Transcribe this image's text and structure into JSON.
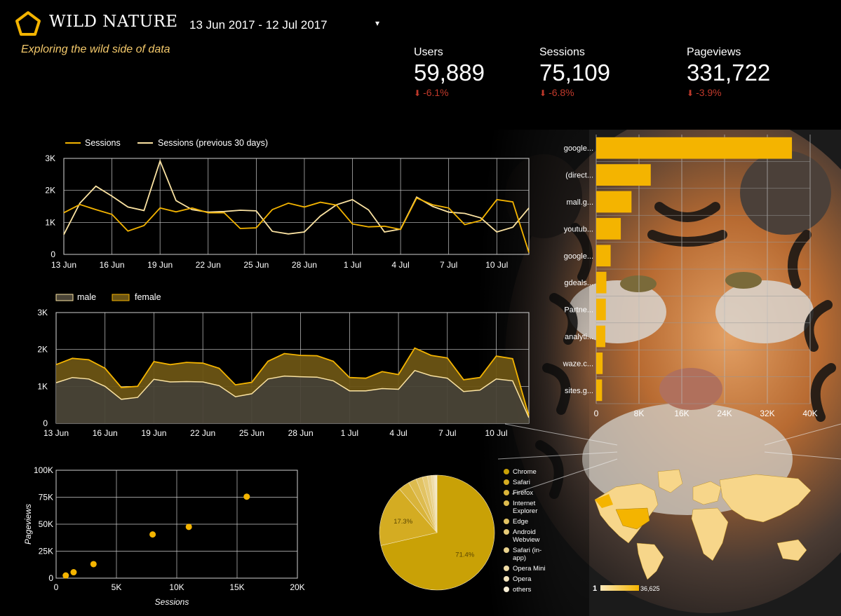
{
  "header": {
    "brand_name": "WILD NATURE",
    "tagline": "Exploring the wild side of data",
    "date_range": "13 Jun 2017 - 12 Jul 2017",
    "accent_color": "#f4b400"
  },
  "kpis": [
    {
      "label": "Users",
      "value": "59,889",
      "delta": "-6.1%"
    },
    {
      "label": "Sessions",
      "value": "75,109",
      "delta": "-6.8%"
    },
    {
      "label": "Pageviews",
      "value": "331,722",
      "delta": "-3.9%"
    }
  ],
  "chart_data": [
    {
      "type": "line",
      "legend": [
        "Sessions",
        "Sessions (previous 30 days)"
      ],
      "x_ticks": [
        "13 Jun",
        "16 Jun",
        "19 Jun",
        "22 Jun",
        "25 Jun",
        "28 Jun",
        "1 Jul",
        "4 Jul",
        "7 Jul",
        "10 Jul"
      ],
      "y_ticks": [
        "0",
        "1K",
        "2K",
        "3K"
      ],
      "ylim": [
        0,
        3000
      ],
      "series": [
        {
          "name": "Sessions",
          "color": "#f4b400",
          "values": [
            1300,
            1560,
            1400,
            1250,
            730,
            900,
            1450,
            1330,
            1450,
            1300,
            1300,
            810,
            830,
            1400,
            1600,
            1480,
            1630,
            1540,
            950,
            860,
            880,
            780,
            1760,
            1550,
            1450,
            930,
            1060,
            1710,
            1640,
            60
          ]
        },
        {
          "name": "Sessions (previous 30 days)",
          "color": "#fbe3a2",
          "values": [
            620,
            1600,
            2130,
            1820,
            1480,
            1370,
            2920,
            1680,
            1400,
            1320,
            1340,
            1380,
            1360,
            720,
            640,
            700,
            1200,
            1550,
            1710,
            1390,
            700,
            790,
            1790,
            1500,
            1320,
            1280,
            1140,
            700,
            850,
            1450
          ]
        }
      ]
    },
    {
      "type": "area",
      "stacked": true,
      "legend": [
        "male",
        "female"
      ],
      "x_ticks": [
        "13 Jun",
        "16 Jun",
        "19 Jun",
        "22 Jun",
        "25 Jun",
        "28 Jun",
        "1 Jul",
        "4 Jul",
        "7 Jul",
        "10 Jul"
      ],
      "y_ticks": [
        "0",
        "1K",
        "2K",
        "3K"
      ],
      "ylim": [
        0,
        3000
      ],
      "series": [
        {
          "name": "male",
          "color": "#fbe3a2",
          "values": [
            1100,
            1240,
            1200,
            1000,
            650,
            700,
            1190,
            1120,
            1130,
            1120,
            1020,
            720,
            800,
            1200,
            1280,
            1260,
            1250,
            1150,
            880,
            880,
            940,
            920,
            1430,
            1290,
            1220,
            860,
            900,
            1200,
            1150,
            150
          ]
        },
        {
          "name": "female",
          "color": "#f4b400",
          "values": [
            490,
            520,
            520,
            490,
            320,
            300,
            480,
            470,
            520,
            510,
            470,
            320,
            310,
            480,
            610,
            580,
            580,
            530,
            360,
            340,
            460,
            400,
            610,
            550,
            550,
            320,
            340,
            620,
            600,
            50
          ]
        }
      ]
    },
    {
      "type": "bar",
      "orientation": "horizontal",
      "categories": [
        "google...",
        "(direct...",
        "mall.g...",
        "youtub...",
        "google...",
        "gdeals...",
        "Partne...",
        "analyti...",
        "waze.c...",
        "sites.g..."
      ],
      "values": [
        36600,
        10200,
        6600,
        4600,
        2700,
        1900,
        1800,
        1700,
        1200,
        1100
      ],
      "x_ticks": [
        "0",
        "8K",
        "16K",
        "24K",
        "32K",
        "40K"
      ],
      "xlim": [
        0,
        40000
      ]
    },
    {
      "type": "scatter",
      "xlabel": "Sessions",
      "ylabel": "Pageviews",
      "x_ticks": [
        "0",
        "5K",
        "10K",
        "15K",
        "20K"
      ],
      "y_ticks": [
        "0",
        "25K",
        "50K",
        "75K",
        "100K"
      ],
      "xlim": [
        0,
        20000
      ],
      "ylim": [
        0,
        100000
      ],
      "points": [
        {
          "x": 800,
          "y": 2500
        },
        {
          "x": 1450,
          "y": 5500
        },
        {
          "x": 3100,
          "y": 13000
        },
        {
          "x": 8000,
          "y": 40500
        },
        {
          "x": 11000,
          "y": 47500
        },
        {
          "x": 15800,
          "y": 75500
        }
      ]
    },
    {
      "type": "pie",
      "slices": [
        {
          "label": "Chrome",
          "value": 71.4,
          "color": "#c9a106",
          "text": "71.4%"
        },
        {
          "label": "Safari",
          "value": 17.3,
          "color": "#d4ac22",
          "text": "17.3%"
        },
        {
          "label": "Firefox",
          "value": 3.1,
          "color": "#d9b43a",
          "text": ""
        },
        {
          "label": "Internet Explorer",
          "value": 2.3,
          "color": "#ddbb4e",
          "text": ""
        },
        {
          "label": "Edge",
          "value": 1.8,
          "color": "#e2c363",
          "text": ""
        },
        {
          "label": "Android Webview",
          "value": 1.4,
          "color": "#e6cb78",
          "text": ""
        },
        {
          "label": "Safari (in-app)",
          "value": 1.1,
          "color": "#ead38e",
          "text": ""
        },
        {
          "label": "Opera Mini",
          "value": 0.7,
          "color": "#efdca6",
          "text": ""
        },
        {
          "label": "Opera",
          "value": 0.5,
          "color": "#f4e5bd",
          "text": ""
        },
        {
          "label": "others",
          "value": 0.4,
          "color": "#f8efd6",
          "text": ""
        }
      ]
    },
    {
      "type": "geo",
      "legend_min": "1",
      "legend_max": "36,625"
    }
  ]
}
